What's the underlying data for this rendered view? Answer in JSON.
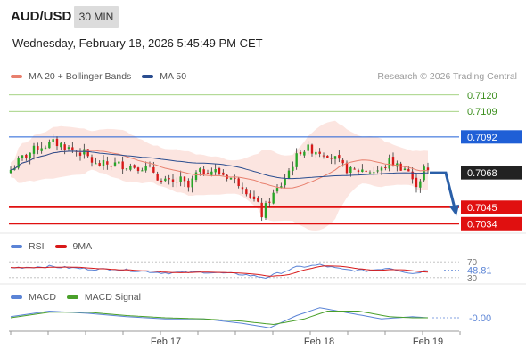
{
  "header": {
    "symbol": "AUD/USD",
    "timeframe": "30 MIN",
    "datetime": "Wednesday, February 18, 2026 5:45:49 PM CET"
  },
  "legend": {
    "ma20_label": "MA 20 + Bollinger Bands",
    "ma50_label": "MA 50",
    "research": "Research © 2026 Trading Central"
  },
  "rsi_panel": {
    "legend_rsi": "RSI",
    "legend_9ma": "9MA",
    "level_70": "70",
    "level_30": "30",
    "value": "48.81"
  },
  "macd_panel": {
    "legend_macd": "MACD",
    "legend_signal": "MACD Signal",
    "value": "-0.00"
  },
  "colors": {
    "bull": "#27a527",
    "bear": "#d81919",
    "ma20": "#e8806e",
    "ma50": "#2a4d8f",
    "bollinger_fill": "#fbdcd6",
    "support": "#e01010",
    "resistance": "#1f5fd6",
    "target": "#86c35a",
    "current": "#222222",
    "rsi": "#5b84d6",
    "rsi_ma": "#d81919",
    "macd": "#5b84d6",
    "macd_signal": "#4aa02a",
    "arrow": "#2a5fa8"
  },
  "chart_data": [
    {
      "type": "candlestick",
      "title": "AUD/USD 30 MIN",
      "x_ticks": [
        "Feb 17",
        "Feb 18",
        "Feb 19"
      ],
      "series_names": [
        "MA 20 + Bollinger Bands",
        "MA 50"
      ],
      "levels": [
        {
          "value": 0.712,
          "label": "0.7120",
          "kind": "target"
        },
        {
          "value": 0.7109,
          "label": "0.7109",
          "kind": "target"
        },
        {
          "value": 0.7092,
          "label": "0.7092",
          "kind": "resistance"
        },
        {
          "value": 0.7068,
          "label": "0.7068",
          "kind": "current"
        },
        {
          "value": 0.7045,
          "label": "0.7045",
          "kind": "support"
        },
        {
          "value": 0.7034,
          "label": "0.7034",
          "kind": "support"
        }
      ],
      "projection": {
        "from": 0.7068,
        "to": 0.7042
      },
      "close_path": [
        [
          0,
          0.707
        ],
        [
          3,
          0.7078
        ],
        [
          7,
          0.7085
        ],
        [
          11,
          0.7088
        ],
        [
          13,
          0.7087
        ],
        [
          16,
          0.7083
        ],
        [
          19,
          0.7081
        ],
        [
          22,
          0.7073
        ],
        [
          26,
          0.7074
        ],
        [
          30,
          0.7073
        ],
        [
          34,
          0.7072
        ],
        [
          37,
          0.7069
        ],
        [
          39,
          0.7062
        ],
        [
          42,
          0.7061
        ],
        [
          44,
          0.7063
        ],
        [
          46,
          0.7058
        ],
        [
          48,
          0.7067
        ],
        [
          51,
          0.707
        ],
        [
          53,
          0.7069
        ],
        [
          56,
          0.7066
        ],
        [
          58,
          0.7063
        ],
        [
          60,
          0.706
        ],
        [
          62,
          0.7053
        ],
        [
          64,
          0.7046
        ],
        [
          65,
          0.704
        ],
        [
          67,
          0.705
        ],
        [
          70,
          0.706
        ],
        [
          73,
          0.7074
        ],
        [
          75,
          0.7083
        ],
        [
          77,
          0.7084
        ],
        [
          79,
          0.7083
        ],
        [
          82,
          0.7081
        ],
        [
          84,
          0.7077
        ],
        [
          86,
          0.7072
        ],
        [
          88,
          0.7069
        ],
        [
          91,
          0.707
        ],
        [
          94,
          0.7069
        ],
        [
          96,
          0.707
        ],
        [
          98,
          0.7076
        ],
        [
          100,
          0.7073
        ],
        [
          102,
          0.7071
        ],
        [
          103,
          0.7069
        ],
        [
          104,
          0.7062
        ],
        [
          105,
          0.7061
        ],
        [
          106,
          0.7064
        ],
        [
          107,
          0.7071
        ],
        [
          108,
          0.7068
        ]
      ],
      "ylim": [
        0.703,
        0.7127
      ]
    },
    {
      "type": "line",
      "name": "RSI",
      "levels": [
        70,
        30
      ],
      "last_value": 48.81,
      "ylim": [
        25,
        75
      ],
      "rsi_path": [
        [
          0,
          55
        ],
        [
          10,
          58
        ],
        [
          20,
          52
        ],
        [
          30,
          49
        ],
        [
          40,
          42
        ],
        [
          50,
          44
        ],
        [
          60,
          38
        ],
        [
          66,
          30
        ],
        [
          74,
          56
        ],
        [
          80,
          62
        ],
        [
          86,
          50
        ],
        [
          92,
          47
        ],
        [
          98,
          55
        ],
        [
          104,
          40
        ],
        [
          108,
          48.81
        ]
      ]
    },
    {
      "type": "line",
      "name": "MACD",
      "last_value": -0.0,
      "ylim": [
        -0.0012,
        0.0012
      ],
      "macd_path": [
        [
          0,
          0.0001
        ],
        [
          10,
          0.0006
        ],
        [
          20,
          0.0004
        ],
        [
          30,
          0.0001
        ],
        [
          40,
          -0.0001
        ],
        [
          50,
          -0.0001
        ],
        [
          60,
          -0.0005
        ],
        [
          67,
          -0.0009
        ],
        [
          74,
          0.0002
        ],
        [
          80,
          0.0009
        ],
        [
          88,
          0.0004
        ],
        [
          96,
          -0.0001
        ],
        [
          104,
          0.0001
        ],
        [
          108,
          -0.0
        ]
      ],
      "signal_path": [
        [
          0,
          0.0
        ],
        [
          10,
          0.0005
        ],
        [
          20,
          0.0005
        ],
        [
          30,
          0.0002
        ],
        [
          40,
          0.0
        ],
        [
          50,
          -0.0001
        ],
        [
          60,
          -0.0003
        ],
        [
          68,
          -0.0006
        ],
        [
          76,
          -0.0001
        ],
        [
          82,
          0.0006
        ],
        [
          90,
          0.0006
        ],
        [
          98,
          0.0001
        ],
        [
          104,
          0.0
        ],
        [
          108,
          0.0
        ]
      ]
    }
  ]
}
